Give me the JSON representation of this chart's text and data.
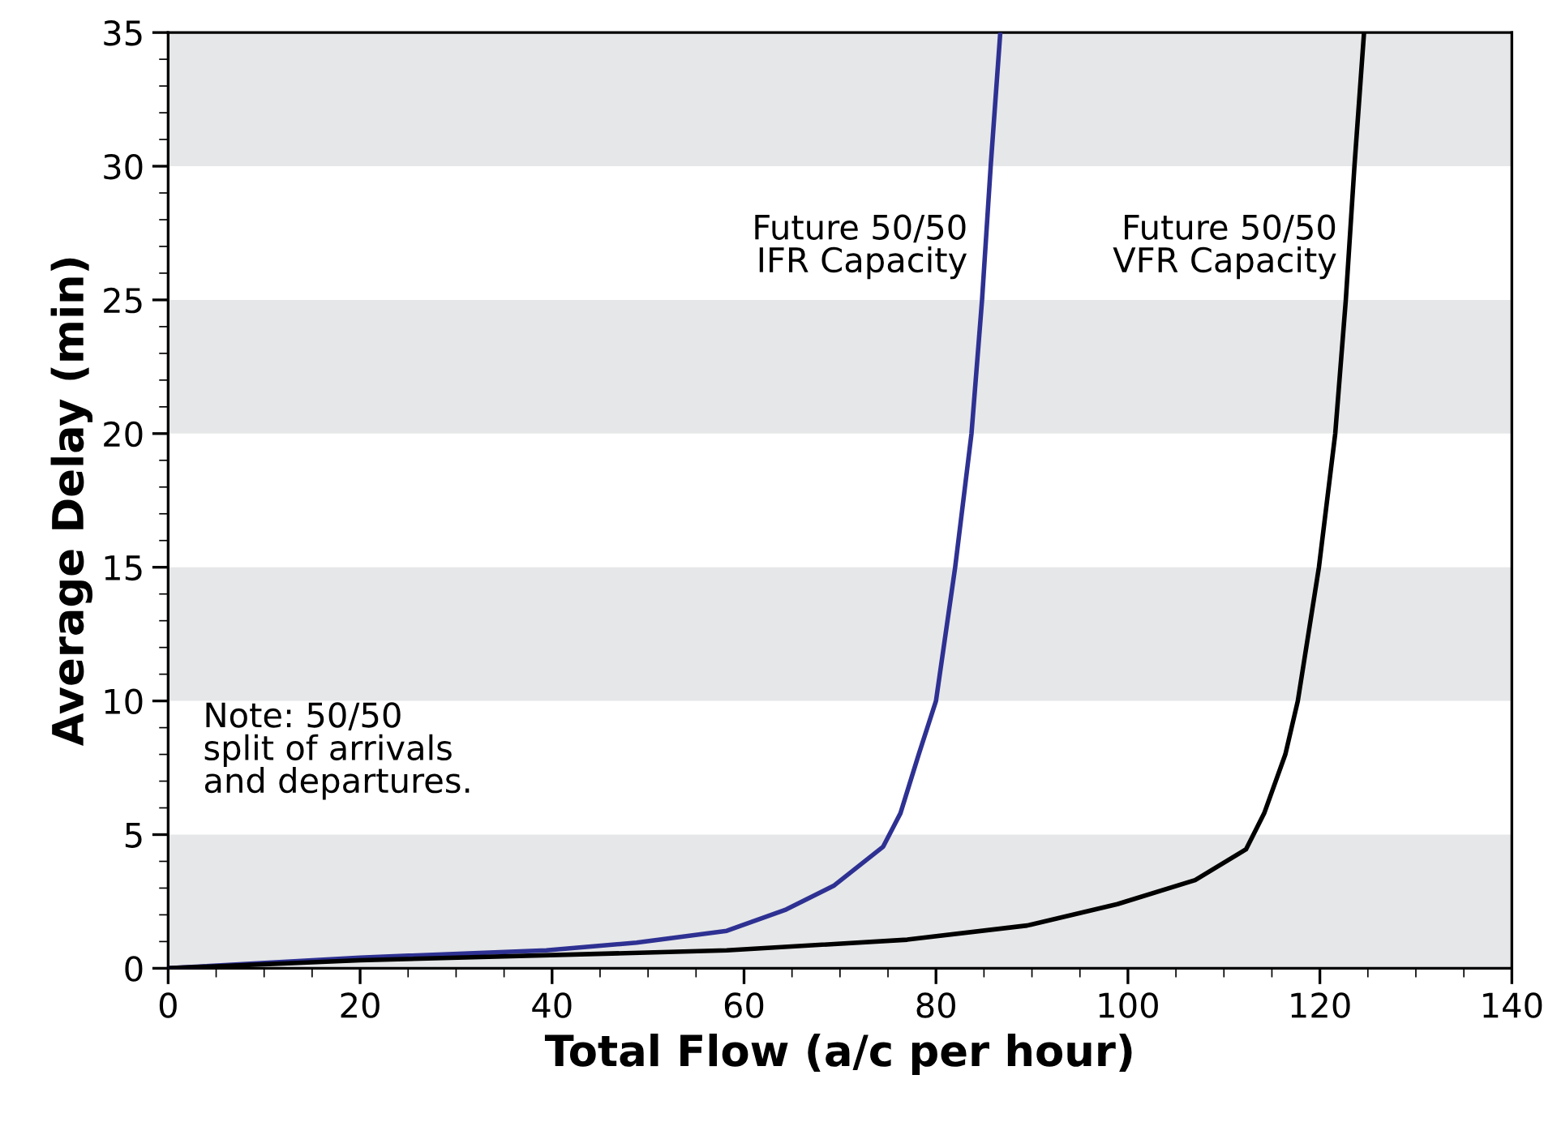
{
  "chart_data": {
    "type": "line",
    "xlabel": "Total Flow (a/c per hour)",
    "ylabel": "Average Delay (min)",
    "xlim": [
      0,
      140
    ],
    "ylim": [
      0,
      35
    ],
    "xticks": [
      0,
      20,
      40,
      60,
      80,
      100,
      120,
      140
    ],
    "yticks": [
      0,
      5,
      10,
      15,
      20,
      25,
      30,
      35
    ],
    "grid": false,
    "legend": false,
    "marker": "none",
    "line_style": "solid",
    "series": [
      {
        "color": "#2e3192",
        "x": [
          0,
          20,
          39.4,
          48.8,
          58.2,
          64.4,
          69.4,
          74.5,
          76.3,
          78.2,
          80.0,
          82.0,
          83.7,
          84.8,
          85.7,
          86.7
        ],
        "values": [
          0,
          0.4,
          0.67,
          0.96,
          1.4,
          2.2,
          3.1,
          4.55,
          5.8,
          8.0,
          10,
          15,
          20,
          25,
          30,
          35
        ]
      },
      {
        "color": "#000000",
        "x": [
          0,
          20,
          58.2,
          77.0,
          89.5,
          98.9,
          107.0,
          112.3,
          114.2,
          116.4,
          117.7,
          119.9,
          121.6,
          122.7,
          123.6,
          124.6
        ],
        "values": [
          0,
          0.3,
          0.67,
          1.07,
          1.6,
          2.4,
          3.3,
          4.45,
          5.8,
          8.0,
          10,
          15,
          20,
          25,
          30,
          35
        ]
      }
    ],
    "bands": [
      {
        "axis": "y",
        "from": 0,
        "to": 5,
        "color": "#e6e7e8"
      },
      {
        "axis": "y",
        "from": 10,
        "to": 15,
        "color": "#e6e7e8"
      },
      {
        "axis": "y",
        "from": 20,
        "to": 25,
        "color": "#e6e7e8"
      },
      {
        "axis": "y",
        "from": 30,
        "to": 35,
        "color": "#e6e7e8"
      }
    ],
    "annotations": [
      {
        "text": "Future 50/50\nIFR Capacity",
        "x": 84.8,
        "y": 27
      },
      {
        "text": "Future 50/50\nVFR Capacity",
        "x": 123.3,
        "y": 27
      },
      "Note: 50/50\nsplit of arrivals\nand departures."
    ]
  }
}
